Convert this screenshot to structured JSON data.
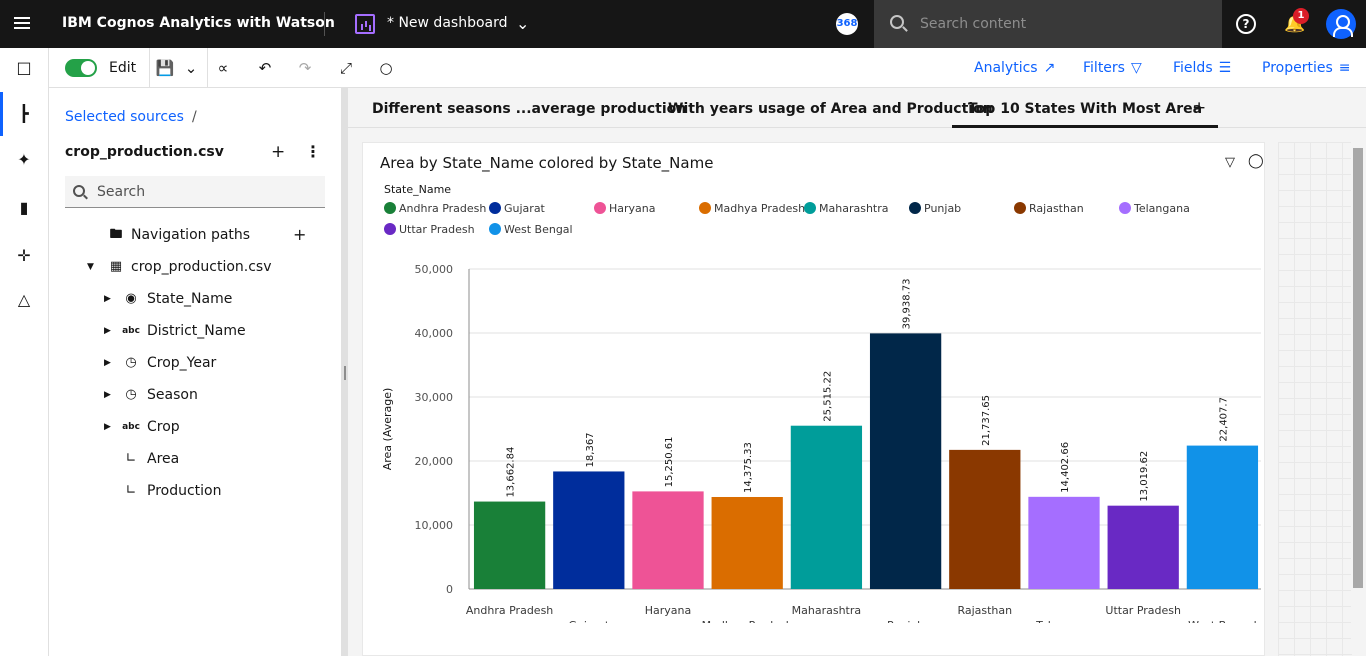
{
  "header": {
    "brand": "IBM Cognos Analytics with Watson",
    "dashboard_title": "* New dashboard",
    "badge": "368",
    "search_placeholder": "Search content",
    "help_icon": "?",
    "notification_count": "1"
  },
  "toolbar": {
    "edit_label": "Edit",
    "analytics_label": "Analytics",
    "filters_label": "Filters",
    "fields_label": "Fields",
    "properties_label": "Properties"
  },
  "sources": {
    "breadcrumb": "Selected sources",
    "breadcrumb_sep": "/",
    "source_name": "crop_production.csv",
    "search_placeholder": "Search",
    "tree": {
      "navigation_paths": "Navigation paths",
      "table": "crop_production.csv",
      "fields": [
        "State_Name",
        "District_Name",
        "Crop_Year",
        "Season",
        "Crop",
        "Area",
        "Production"
      ]
    }
  },
  "tabs": [
    {
      "label": "Different seasons ...average production"
    },
    {
      "label": "With years usage of Area and Production"
    },
    {
      "label": "Top 10 States With Most Area"
    }
  ],
  "widget": {
    "title": "Area by State_Name colored by State_Name",
    "legend_title": "State_Name"
  },
  "chart_data": {
    "type": "bar",
    "title": "Area by State_Name colored by State_Name",
    "xlabel": "",
    "ylabel": "Area (Average)",
    "ylim": [
      0,
      50000
    ],
    "y_ticks": [
      "0",
      "10,000",
      "20,000",
      "30,000",
      "40,000",
      "50,000"
    ],
    "legend_position": "top-left",
    "grid": true,
    "categories": [
      "Andhra Pradesh",
      "Gujarat",
      "Haryana",
      "Madhya Pradesh",
      "Maharashtra",
      "Punjab",
      "Rajasthan",
      "Telangana",
      "Uttar Pradesh",
      "West Bengal"
    ],
    "values": [
      13662.84,
      18367,
      15250.61,
      14375.33,
      25515.22,
      39938.73,
      21737.65,
      14402.66,
      13019.62,
      22407.7
    ],
    "value_labels": [
      "13,662.84",
      "18,367",
      "15,250.61",
      "14,375.33",
      "25,515.22",
      "39,938.73",
      "21,737.65",
      "14,402.66",
      "13,019.62",
      "22,407.7"
    ],
    "colors": [
      "#198038",
      "#002d9c",
      "#ee5396",
      "#da6d00",
      "#009d9a",
      "#012749",
      "#8a3800",
      "#a56eff",
      "#6929c4",
      "#1192e8"
    ]
  }
}
